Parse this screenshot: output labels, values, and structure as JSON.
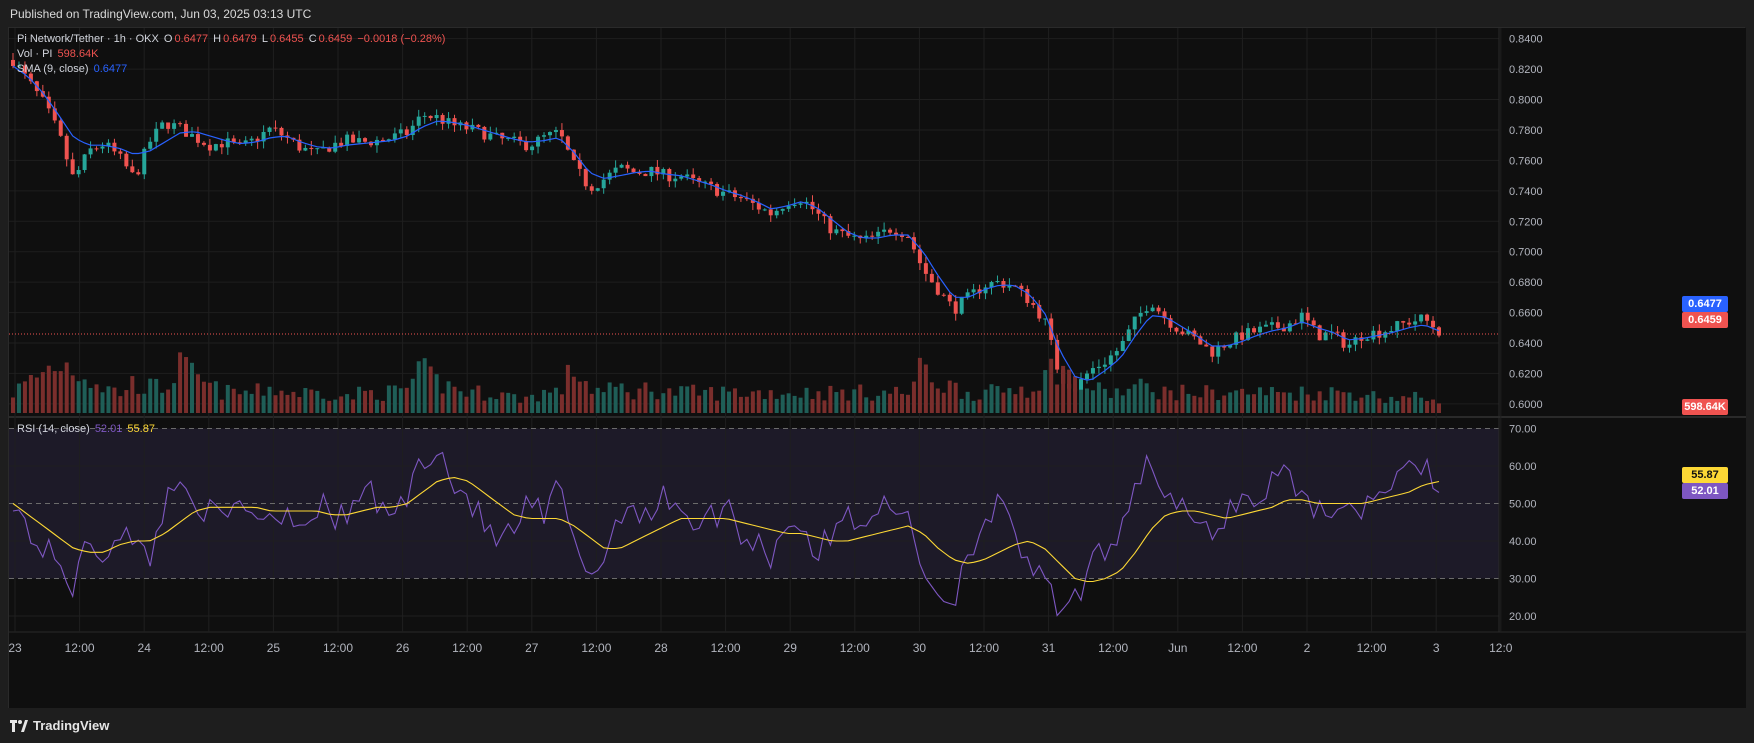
{
  "header": {
    "published": "Published on TradingView.com, Jun 03, 2025 03:13 UTC"
  },
  "legend": {
    "symbol": "Pi Network/Tether · 1h · OKX",
    "o_label": "O",
    "o_value": "0.6477",
    "h_label": "H",
    "h_value": "0.6479",
    "l_label": "L",
    "l_value": "0.6455",
    "c_label": "C",
    "c_value": "0.6459",
    "change": "−0.0018 (−0.28%)",
    "vol_label": "Vol · PI",
    "vol_value": "598.64K",
    "sma_label": "SMA (9, close)",
    "sma_value": "0.6477",
    "rsi_label": "RSI (14, close)",
    "rsi_value": "52.01",
    "rsi_ma_value": "55.87"
  },
  "price_tags": {
    "sma": "0.6477",
    "close": "0.6459",
    "volume": "598.64K",
    "rsi_ma": "55.87",
    "rsi": "52.01"
  },
  "colors": {
    "up": "#26a69a",
    "down": "#ef5350",
    "sma": "#2962ff",
    "rsi": "#7e57c2",
    "rsi_ma": "#fdd835",
    "bg": "#0f0f0f",
    "grid": "#1f1f1f"
  },
  "footer": {
    "brand": "TradingView"
  },
  "chart_data": {
    "type": "candlestick",
    "interval": "1h",
    "price_axis": {
      "ticks": [
        "0.8400",
        "0.8200",
        "0.8000",
        "0.7800",
        "0.7600",
        "0.7400",
        "0.7200",
        "0.7000",
        "0.6800",
        "0.6600",
        "0.6400",
        "0.6200",
        "0.6000"
      ],
      "ylim": [
        0.594,
        0.847
      ]
    },
    "rsi_axis": {
      "ticks": [
        "70.00",
        "60.00",
        "50.00",
        "40.00",
        "30.00",
        "20.00"
      ],
      "ylim": [
        16,
        72
      ],
      "bands": [
        30,
        50,
        70
      ]
    },
    "time_axis": [
      "23",
      "12:00",
      "24",
      "12:00",
      "25",
      "12:00",
      "26",
      "12:00",
      "27",
      "12:00",
      "28",
      "12:00",
      "29",
      "12:00",
      "30",
      "12:00",
      "31",
      "12:00",
      "Jun",
      "12:00",
      "2",
      "12:00",
      "3",
      "12:0"
    ],
    "price_path": [
      0.826,
      0.812,
      0.798,
      0.778,
      0.747,
      0.766,
      0.771,
      0.762,
      0.748,
      0.772,
      0.785,
      0.781,
      0.775,
      0.77,
      0.772,
      0.768,
      0.774,
      0.781,
      0.775,
      0.768,
      0.764,
      0.77,
      0.773,
      0.772,
      0.773,
      0.775,
      0.778,
      0.79,
      0.788,
      0.783,
      0.781,
      0.778,
      0.774,
      0.772,
      0.77,
      0.775,
      0.778,
      0.756,
      0.742,
      0.748,
      0.755,
      0.752,
      0.753,
      0.75,
      0.75,
      0.745,
      0.742,
      0.738,
      0.735,
      0.73,
      0.725,
      0.733,
      0.735,
      0.725,
      0.714,
      0.71,
      0.707,
      0.71,
      0.716,
      0.711,
      0.688,
      0.675,
      0.662,
      0.67,
      0.678,
      0.68,
      0.677,
      0.668,
      0.655,
      0.618,
      0.61,
      0.622,
      0.628,
      0.637,
      0.655,
      0.668,
      0.656,
      0.648,
      0.642,
      0.634,
      0.64,
      0.645,
      0.648,
      0.65,
      0.652,
      0.658,
      0.645,
      0.646,
      0.638,
      0.646,
      0.647,
      0.65,
      0.654,
      0.656,
      0.648
    ],
    "sma_path": [
      0.822,
      0.815,
      0.804,
      0.79,
      0.775,
      0.77,
      0.77,
      0.768,
      0.764,
      0.766,
      0.772,
      0.778,
      0.779,
      0.776,
      0.773,
      0.771,
      0.772,
      0.775,
      0.776,
      0.772,
      0.769,
      0.768,
      0.77,
      0.771,
      0.772,
      0.773,
      0.776,
      0.782,
      0.786,
      0.785,
      0.783,
      0.78,
      0.777,
      0.774,
      0.772,
      0.773,
      0.775,
      0.765,
      0.752,
      0.748,
      0.75,
      0.752,
      0.753,
      0.751,
      0.75,
      0.747,
      0.744,
      0.74,
      0.737,
      0.733,
      0.728,
      0.73,
      0.733,
      0.729,
      0.721,
      0.713,
      0.709,
      0.709,
      0.711,
      0.711,
      0.7,
      0.684,
      0.67,
      0.67,
      0.675,
      0.678,
      0.678,
      0.672,
      0.66,
      0.635,
      0.618,
      0.615,
      0.622,
      0.63,
      0.645,
      0.658,
      0.657,
      0.651,
      0.645,
      0.638,
      0.638,
      0.641,
      0.645,
      0.648,
      0.65,
      0.654,
      0.65,
      0.647,
      0.642,
      0.643,
      0.645,
      0.647,
      0.65,
      0.652,
      0.648
    ],
    "rsi_path": [
      52,
      42,
      38,
      34,
      28,
      40,
      36,
      44,
      38,
      36,
      50,
      56,
      52,
      47,
      45,
      50,
      48,
      46,
      49,
      44,
      50,
      47,
      45,
      55,
      50,
      47,
      52,
      62,
      66,
      55,
      52,
      44,
      40,
      42,
      50,
      46,
      55,
      38,
      32,
      35,
      48,
      50,
      46,
      52,
      50,
      44,
      46,
      50,
      42,
      40,
      36,
      46,
      44,
      36,
      42,
      47,
      45,
      50,
      46,
      48,
      32,
      26,
      24,
      38,
      45,
      50,
      40,
      35,
      28,
      20,
      24,
      32,
      38,
      44,
      56,
      62,
      52,
      48,
      45,
      40,
      48,
      52,
      50,
      56,
      60,
      52,
      48,
      50,
      46,
      50,
      53,
      55,
      58,
      62,
      52
    ],
    "rsi_ma_path": [
      50,
      47,
      44,
      41,
      38,
      37,
      37,
      39,
      40,
      40,
      42,
      45,
      48,
      49,
      49,
      49,
      49,
      48,
      48,
      48,
      48,
      47,
      47,
      48,
      49,
      49,
      50,
      53,
      56,
      57,
      56,
      53,
      50,
      47,
      46,
      46,
      46,
      44,
      41,
      38,
      38,
      40,
      42,
      44,
      46,
      46,
      46,
      46,
      45,
      44,
      43,
      42,
      42,
      41,
      40,
      40,
      41,
      42,
      43,
      44,
      42,
      38,
      35,
      34,
      35,
      37,
      39,
      40,
      38,
      34,
      30,
      29,
      30,
      32,
      37,
      43,
      47,
      48,
      48,
      47,
      46,
      47,
      48,
      49,
      51,
      51,
      50,
      50,
      50,
      50,
      51,
      52,
      53,
      55,
      55.87
    ],
    "volume_path": [
      0.4,
      0.6,
      0.8,
      1.0,
      0.9,
      0.7,
      0.5,
      0.4,
      0.6,
      0.5,
      0.5,
      0.9,
      0.7,
      0.5,
      0.4,
      0.4,
      0.4,
      0.5,
      0.4,
      0.4,
      0.4,
      0.4,
      0.3,
      0.4,
      0.4,
      0.4,
      0.5,
      0.8,
      0.6,
      0.5,
      0.4,
      0.4,
      0.4,
      0.3,
      0.3,
      0.4,
      0.4,
      0.9,
      0.5,
      0.4,
      0.5,
      0.4,
      0.5,
      0.4,
      0.4,
      0.4,
      0.4,
      0.4,
      0.4,
      0.4,
      0.4,
      0.4,
      0.4,
      0.4,
      0.4,
      0.4,
      0.4,
      0.4,
      0.4,
      0.4,
      0.9,
      0.6,
      0.5,
      0.4,
      0.4,
      0.4,
      0.5,
      0.5,
      0.7,
      1.0,
      0.6,
      0.5,
      0.4,
      0.4,
      0.5,
      0.5,
      0.4,
      0.4,
      0.4,
      0.4,
      0.4,
      0.4,
      0.4,
      0.4,
      0.4,
      0.4,
      0.4,
      0.4,
      0.4,
      0.4,
      0.3,
      0.3,
      0.3,
      0.3,
      0.3
    ]
  }
}
